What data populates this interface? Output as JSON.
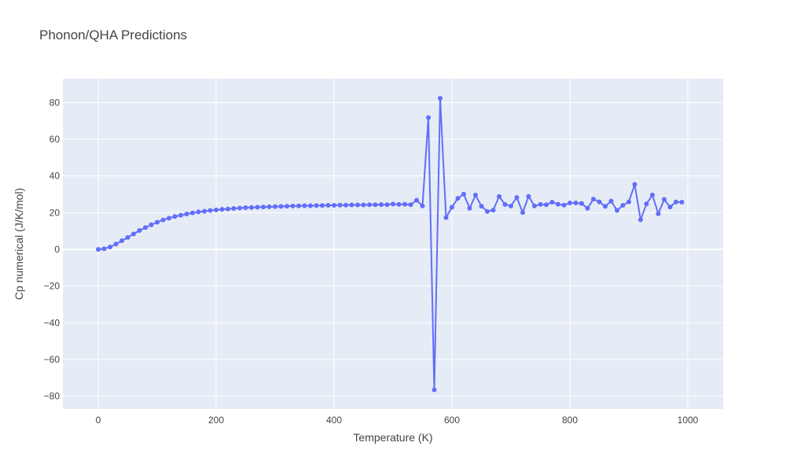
{
  "chart_data": {
    "type": "line",
    "title": "Phonon/QHA Predictions",
    "xlabel": "Temperature (K)",
    "ylabel": "Cp numerical (J/K/mol)",
    "xlim": [
      -60,
      1060
    ],
    "ylim": [
      -87,
      93
    ],
    "xticks": [
      0,
      200,
      400,
      600,
      800,
      1000
    ],
    "xtick_labels": [
      "0",
      "200",
      "400",
      "600",
      "800",
      "1000"
    ],
    "yticks": [
      -80,
      -60,
      -40,
      -20,
      0,
      20,
      40,
      60,
      80
    ],
    "ytick_labels": [
      "−80",
      "−60",
      "−40",
      "−20",
      "0",
      "20",
      "40",
      "60",
      "80"
    ],
    "grid": true,
    "mode": "lines+markers",
    "colors": {
      "series": "#636efa",
      "plot_bg": "#e5ecf6",
      "grid": "#ffffff",
      "text": "#444444"
    },
    "x": [
      0,
      10,
      20,
      30,
      40,
      50,
      60,
      70,
      80,
      90,
      100,
      110,
      120,
      130,
      140,
      150,
      160,
      170,
      180,
      190,
      200,
      210,
      220,
      230,
      240,
      250,
      260,
      270,
      280,
      290,
      300,
      310,
      320,
      330,
      340,
      350,
      360,
      370,
      380,
      390,
      400,
      410,
      420,
      430,
      440,
      450,
      460,
      470,
      480,
      490,
      500,
      510,
      520,
      530,
      540,
      550,
      560,
      570,
      580,
      590,
      600,
      610,
      620,
      630,
      640,
      650,
      660,
      670,
      680,
      690,
      700,
      710,
      720,
      730,
      740,
      750,
      760,
      770,
      780,
      790,
      800,
      810,
      820,
      830,
      840,
      850,
      860,
      870,
      880,
      890,
      900,
      910,
      920,
      930,
      940,
      950,
      960,
      970,
      980,
      990
    ],
    "y": [
      0.0,
      0.3,
      1.3,
      2.9,
      4.7,
      6.5,
      8.4,
      10.3,
      11.9,
      13.4,
      14.8,
      16.0,
      17.0,
      17.9,
      18.6,
      19.3,
      19.9,
      20.4,
      20.8,
      21.2,
      21.5,
      21.8,
      22.0,
      22.3,
      22.5,
      22.7,
      22.8,
      23.0,
      23.1,
      23.2,
      23.3,
      23.4,
      23.5,
      23.6,
      23.7,
      23.8,
      23.8,
      23.9,
      23.9,
      24.0,
      24.0,
      24.1,
      24.1,
      24.2,
      24.2,
      24.2,
      24.3,
      24.3,
      24.4,
      24.3,
      24.7,
      24.5,
      24.6,
      24.3,
      26.8,
      23.7,
      71.8,
      -76.5,
      82.3,
      17.3,
      23.0,
      27.8,
      30.1,
      22.4,
      29.6,
      23.5,
      20.7,
      21.4,
      28.8,
      24.5,
      23.6,
      28.3,
      20.1,
      28.9,
      23.7,
      24.5,
      24.3,
      25.7,
      24.6,
      24.1,
      25.3,
      25.3,
      25.0,
      22.4,
      27.4,
      25.9,
      23.4,
      26.3,
      21.2,
      24.0,
      25.9,
      35.4,
      16.1,
      24.8,
      29.6,
      19.4,
      27.2,
      23.1,
      25.8,
      25.7
    ]
  }
}
